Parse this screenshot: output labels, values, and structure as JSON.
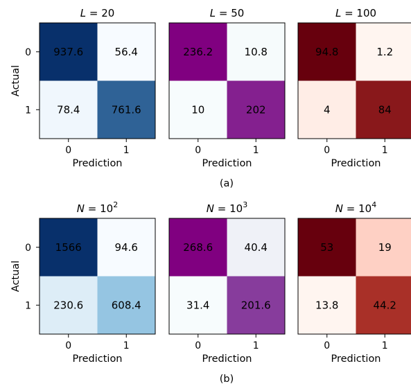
{
  "chart_data": [
    {
      "type": "heatmap",
      "group": "(a)",
      "title_var": "L",
      "title_val": "20",
      "colormap": "Blues",
      "rows": [
        "0",
        "1"
      ],
      "cols": [
        "0",
        "1"
      ],
      "ylabel": "Actual",
      "xlabel": "Prediction",
      "values": [
        [
          "937.6",
          "56.4"
        ],
        [
          "78.4",
          "761.6"
        ]
      ]
    },
    {
      "type": "heatmap",
      "group": "(a)",
      "title_var": "L",
      "title_val": "50",
      "colormap": "BuPu",
      "rows": [
        "0",
        "1"
      ],
      "cols": [
        "0",
        "1"
      ],
      "ylabel": "",
      "xlabel": "Prediction",
      "values": [
        [
          "236.2",
          "10.8"
        ],
        [
          "10",
          "202"
        ]
      ]
    },
    {
      "type": "heatmap",
      "group": "(a)",
      "title_var": "L",
      "title_val": "100",
      "colormap": "Reds",
      "rows": [
        "0",
        "1"
      ],
      "cols": [
        "0",
        "1"
      ],
      "ylabel": "",
      "xlabel": "Prediction",
      "values": [
        [
          "94.8",
          "1.2"
        ],
        [
          "4",
          "84"
        ]
      ]
    },
    {
      "type": "heatmap",
      "group": "(b)",
      "title_var": "N",
      "title_val": "10",
      "title_exp": "2",
      "colormap": "Blues",
      "rows": [
        "0",
        "1"
      ],
      "cols": [
        "0",
        "1"
      ],
      "ylabel": "Actual",
      "xlabel": "Prediction",
      "values": [
        [
          "1566",
          "94.6"
        ],
        [
          "230.6",
          "608.4"
        ]
      ]
    },
    {
      "type": "heatmap",
      "group": "(b)",
      "title_var": "N",
      "title_val": "10",
      "title_exp": "3",
      "colormap": "BuPu",
      "rows": [
        "0",
        "1"
      ],
      "cols": [
        "0",
        "1"
      ],
      "ylabel": "",
      "xlabel": "Prediction",
      "values": [
        [
          "268.6",
          "40.4"
        ],
        [
          "31.4",
          "201.6"
        ]
      ]
    },
    {
      "type": "heatmap",
      "group": "(b)",
      "title_var": "N",
      "title_val": "10",
      "title_exp": "4",
      "colormap": "Reds",
      "rows": [
        "0",
        "1"
      ],
      "cols": [
        "0",
        "1"
      ],
      "ylabel": "",
      "xlabel": "Prediction",
      "values": [
        [
          "53",
          "19"
        ],
        [
          "13.8",
          "44.2"
        ]
      ]
    }
  ],
  "figure": {
    "subcaptions": [
      "(a)",
      "(b)"
    ]
  },
  "colormaps": {
    "Blues": {
      "low": "#f7fbff",
      "mid": "#6aaed6",
      "high": "#08306b",
      "dark_text": "#08306b",
      "light_text": "#ffffff"
    },
    "BuPu": {
      "low": "#f7fcfd",
      "mid": "#8c6bb1",
      "high": "#800080",
      "dark_text": "#800080",
      "light_text": "#ffffff"
    },
    "Reds": {
      "low": "#fff5f0",
      "mid": "#fb6a4a",
      "high": "#67000d",
      "dark_text": "#67000d",
      "light_text": "#ffffff"
    }
  }
}
